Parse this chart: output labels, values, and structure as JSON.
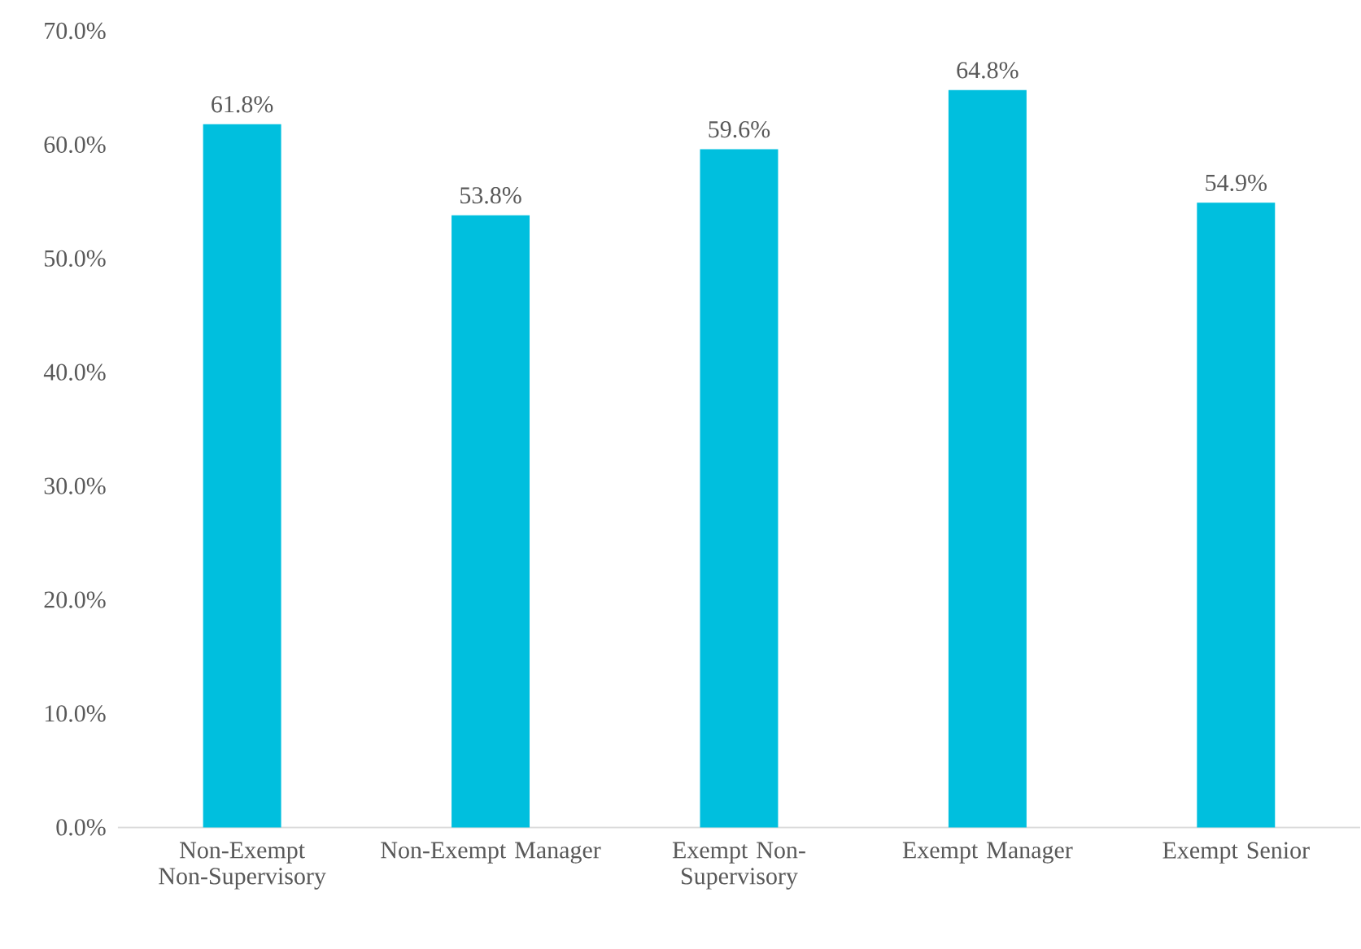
{
  "chart_data": {
    "type": "bar",
    "categories": [
      "Non-Exempt Non-Supervisory",
      "Non-Exempt Manager",
      "Exempt Non-Supervisory",
      "Exempt Manager",
      "Exempt Senior"
    ],
    "values": [
      61.8,
      53.8,
      59.6,
      64.8,
      54.9
    ],
    "value_labels": [
      "61.8%",
      "53.8%",
      "59.6%",
      "64.8%",
      "54.9%"
    ],
    "color": "#00bfde",
    "ylim": [
      0,
      70
    ],
    "yticks": [
      {
        "value": 0,
        "label": "0.0%"
      },
      {
        "value": 10,
        "label": "10.0%"
      },
      {
        "value": 20,
        "label": "20.0%"
      },
      {
        "value": 30,
        "label": "30.0%"
      },
      {
        "value": 40,
        "label": "40.0%"
      },
      {
        "value": 50,
        "label": "50.0%"
      },
      {
        "value": 60,
        "label": "60.0%"
      },
      {
        "value": 70,
        "label": "70.0%"
      }
    ]
  }
}
